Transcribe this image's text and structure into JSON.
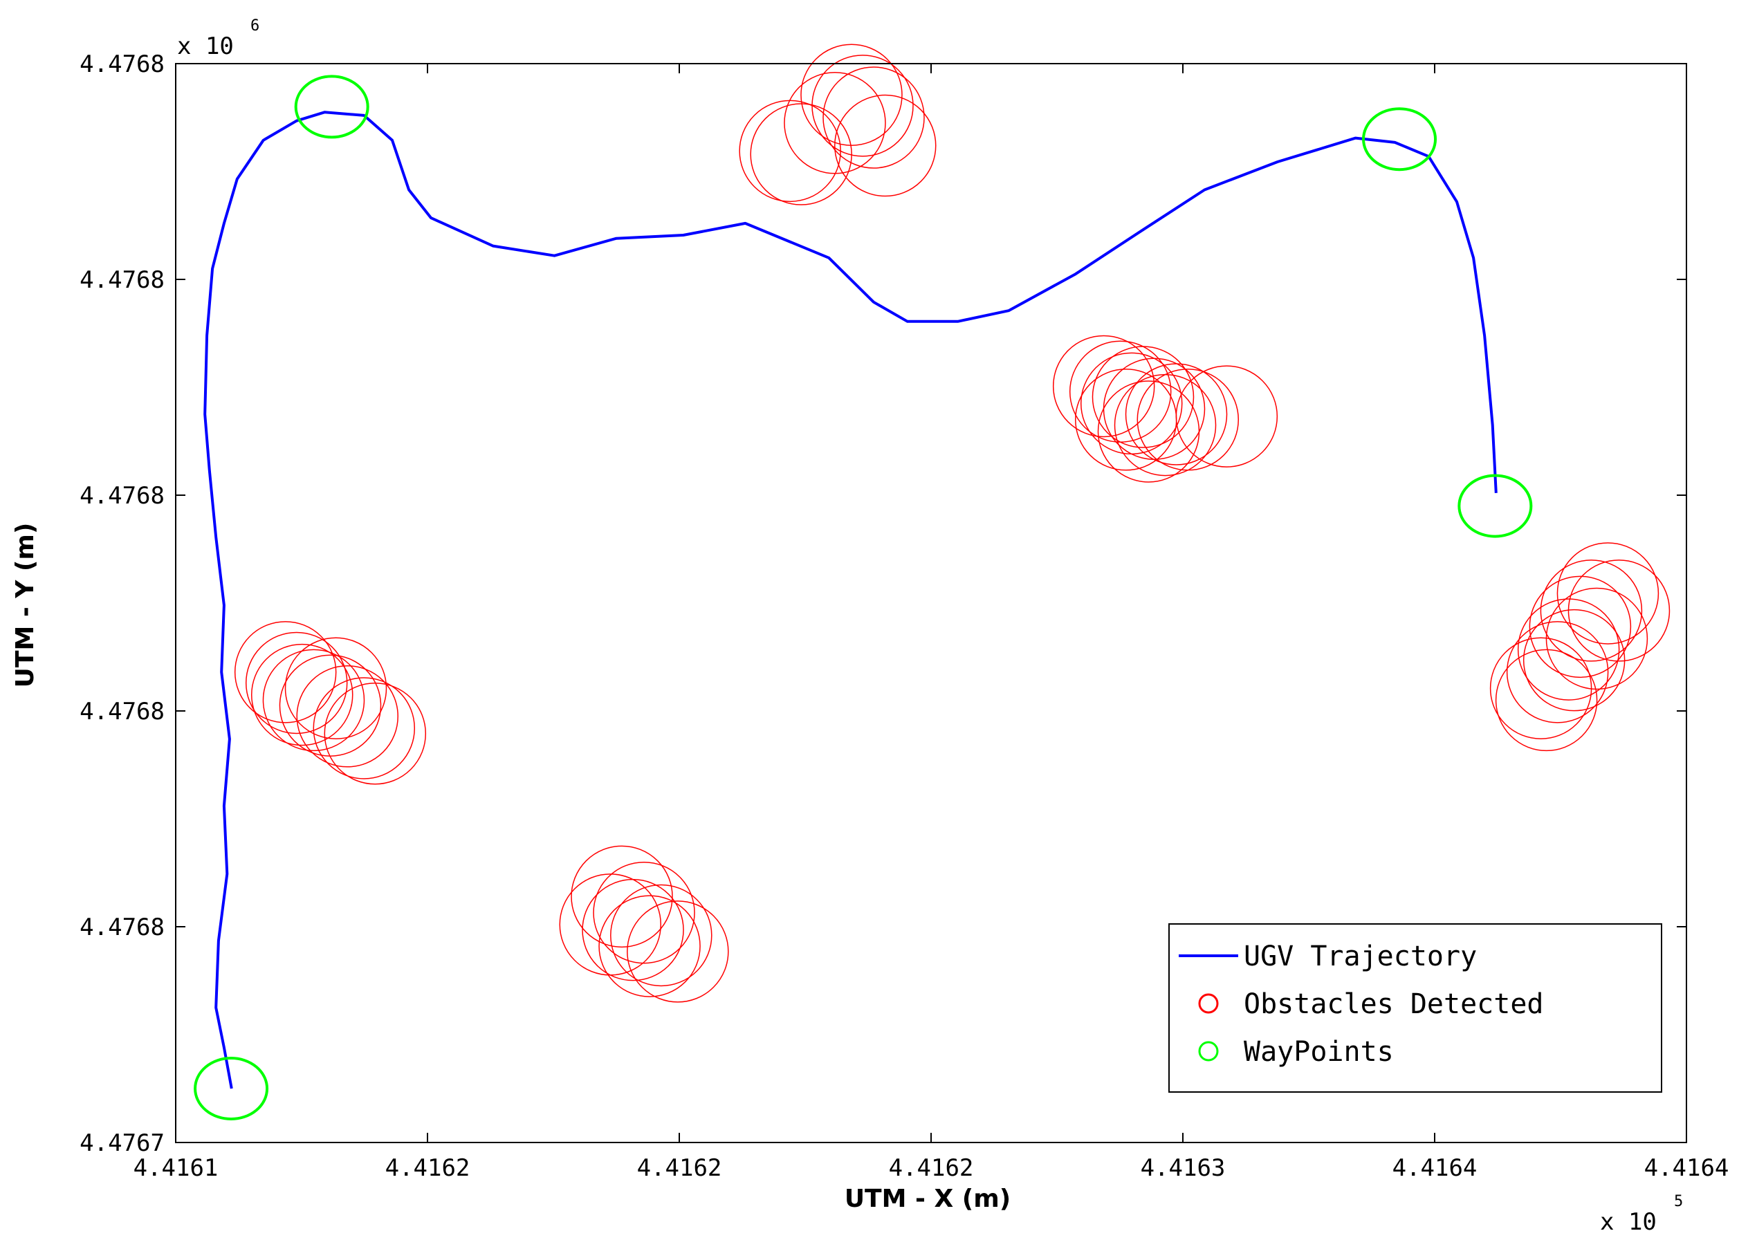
{
  "chart_data": {
    "type": "scatter",
    "x_label": "UTM - X (m)",
    "y_label": "UTM - Y (m)",
    "x_multiplier": {
      "base": "x 10",
      "exponent": "5"
    },
    "y_multiplier": {
      "base": "x 10",
      "exponent": "6"
    },
    "xlim": [
      4.4161,
      4.4164
    ],
    "ylim": [
      4.47674,
      4.47684
    ],
    "xticks": [
      {
        "value": 4.4161,
        "label": "4.4161"
      },
      {
        "value": 4.41615,
        "label": "4.4162"
      },
      {
        "value": 4.4162,
        "label": "4.4162"
      },
      {
        "value": 4.41625,
        "label": "4.4162"
      },
      {
        "value": 4.4163,
        "label": "4.4163"
      },
      {
        "value": 4.41635,
        "label": "4.4164"
      },
      {
        "value": 4.4164,
        "label": "4.4164"
      }
    ],
    "yticks": [
      {
        "value": 4.47674,
        "label": "4.4767"
      },
      {
        "value": 4.47676,
        "label": "4.4768"
      },
      {
        "value": 4.47678,
        "label": "4.4768"
      },
      {
        "value": 4.4768,
        "label": "4.4768"
      },
      {
        "value": 4.47682,
        "label": "4.4768"
      },
      {
        "value": 4.47684,
        "label": "4.4768"
      }
    ],
    "legend": "lower right",
    "grid": false,
    "series": [
      {
        "name": "UGV Trajectory",
        "type": "line",
        "color": "#0000ff",
        "x": [
          4.4161111,
          4.4161096,
          4.416108,
          4.4161085,
          4.4161102,
          4.4161096,
          4.4161107,
          4.4161091,
          4.4161096,
          4.416108,
          4.4161067,
          4.4161058,
          4.4161062,
          4.4161073,
          4.4161096,
          4.4161122,
          4.4161174,
          4.416124,
          4.4161296,
          4.4161374,
          4.416143,
          4.4161463,
          4.4161507,
          4.416163,
          4.4161752,
          4.4161875,
          4.4162008,
          4.4162131,
          4.4162297,
          4.4162386,
          4.4162453,
          4.4162553,
          4.4162654,
          4.4162787,
          4.4162921,
          4.4163043,
          4.4163188,
          4.4163343,
          4.4163421,
          4.4163488,
          4.4163544,
          4.4163577,
          4.4163599,
          4.4163615,
          4.4163622
        ],
        "values": [
          4.476745,
          4.4767488,
          4.4767525,
          4.4767587,
          4.4767649,
          4.4767712,
          4.4767774,
          4.4767836,
          4.4767898,
          4.4767961,
          4.4768023,
          4.4768075,
          4.4768148,
          4.476821,
          4.4768252,
          4.4768293,
          4.4768329,
          4.4768347,
          4.4768355,
          4.4768352,
          4.4768329,
          4.4768283,
          4.4768257,
          4.4768231,
          4.4768222,
          4.4768238,
          4.4768241,
          4.4768252,
          4.476822,
          4.4768179,
          4.4768161,
          4.4768161,
          4.4768171,
          4.4768205,
          4.4768246,
          4.4768283,
          4.4768309,
          4.4768331,
          4.4768327,
          4.4768314,
          4.4768272,
          4.476822,
          4.4768148,
          4.4768065,
          4.4768002
        ]
      },
      {
        "name": "Obstacles Detected",
        "type": "scatter",
        "color": "#ff0000",
        "x": [
          4.416222,
          4.4162242,
          4.4162342,
          4.4162364,
          4.4162386,
          4.4162409,
          4.4162309,
          4.4162843,
          4.4162876,
          4.4162898,
          4.4162921,
          4.4162943,
          4.4162965,
          4.4162987,
          4.416301,
          4.4163087,
          4.4162887,
          4.4162932,
          4.4163711,
          4.4163744,
          4.4163766,
          4.4163789,
          4.4163811,
          4.4163844,
          4.4163866,
          4.4163722,
          4.4163777,
          4.4163822,
          4.4161218,
          4.416124,
          4.4161274,
          4.4161307,
          4.4161341,
          4.4161374,
          4.4161396,
          4.4161251,
          4.4161318,
          4.4161886,
          4.4161908,
          4.416193,
          4.4161964,
          4.4161997,
          4.4161863,
          4.4161941
        ],
        "values": [
          4.4768319,
          4.4768316,
          4.4768371,
          4.4768361,
          4.476835,
          4.4768324,
          4.4768345,
          4.4768101,
          4.4768096,
          4.4768085,
          4.4768091,
          4.476808,
          4.4768065,
          4.4768075,
          4.476807,
          4.4768073,
          4.476807,
          4.4768059,
          4.4767821,
          4.4767836,
          4.4767857,
          4.4767878,
          4.4767893,
          4.4767909,
          4.4767893,
          4.476781,
          4.4767847,
          4.4767867,
          4.4767836,
          4.4767826,
          4.476781,
          4.4767805,
          4.4767795,
          4.4767784,
          4.4767779,
          4.4767815,
          4.4767821,
          4.4767628,
          4.4767597,
          4.4767613,
          4.4767592,
          4.4767577,
          4.4767602,
          4.4767582
        ]
      },
      {
        "name": "WayPoints",
        "type": "scatter",
        "color": "#00ff00",
        "x": [
          4.416111,
          4.416131,
          4.416343,
          4.416362
        ],
        "values": [
          4.476745,
          4.476836,
          4.476833,
          4.476799
        ]
      }
    ]
  }
}
